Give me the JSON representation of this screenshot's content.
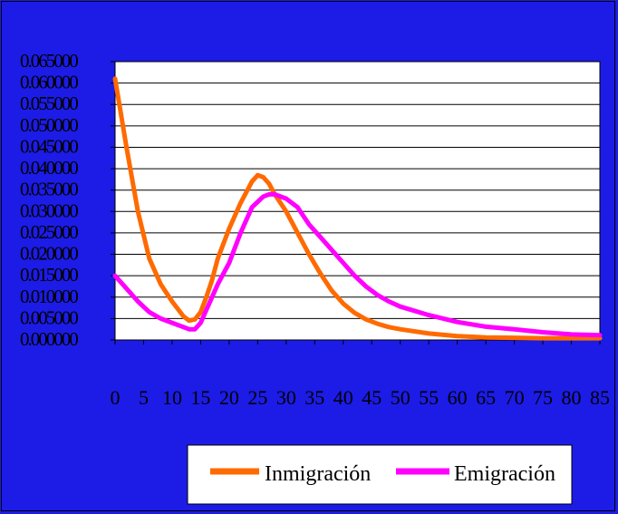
{
  "chart_data": {
    "type": "line",
    "title": "",
    "xlabel": "",
    "ylabel": "",
    "xlim": [
      0,
      85
    ],
    "ylim": [
      0,
      0.065
    ],
    "x_ticks": [
      "0",
      "5",
      "10",
      "15",
      "20",
      "25",
      "30",
      "35",
      "40",
      "45",
      "50",
      "55",
      "60",
      "65",
      "70",
      "75",
      "80",
      "85"
    ],
    "y_ticks": [
      "0.000000",
      "0.005000",
      "0.010000",
      "0.015000",
      "0.020000",
      "0.025000",
      "0.030000",
      "0.035000",
      "0.040000",
      "0.045000",
      "0.050000",
      "0.055000",
      "0.060000",
      "0.065000"
    ],
    "grid": "horizontal",
    "legend_position": "bottom-center",
    "colors": {
      "background": "#1c1ce6",
      "plot": "#ffffff",
      "inmigracion": "#ff6a00",
      "emigracion": "#ff00ff"
    },
    "series": [
      {
        "name": "Inmigración",
        "x": [
          0,
          2,
          4,
          6,
          8,
          10,
          12,
          13,
          14,
          15,
          16,
          17,
          18,
          20,
          22,
          24,
          25,
          26,
          27,
          28,
          30,
          32,
          34,
          36,
          38,
          40,
          42,
          44,
          46,
          48,
          50,
          55,
          60,
          65,
          70,
          75,
          80,
          85
        ],
        "y": [
          0.061,
          0.045,
          0.03,
          0.019,
          0.013,
          0.009,
          0.0055,
          0.0045,
          0.0048,
          0.0065,
          0.01,
          0.014,
          0.019,
          0.026,
          0.032,
          0.037,
          0.0385,
          0.038,
          0.0365,
          0.034,
          0.03,
          0.025,
          0.02,
          0.0155,
          0.0115,
          0.0085,
          0.0063,
          0.0048,
          0.0038,
          0.003,
          0.0025,
          0.0015,
          0.0009,
          0.0006,
          0.0005,
          0.0004,
          0.0004,
          0.0004
        ]
      },
      {
        "name": "Emigración",
        "x": [
          0,
          2,
          4,
          6,
          8,
          10,
          12,
          13,
          14,
          15,
          16,
          17,
          18,
          20,
          22,
          24,
          26,
          27,
          28,
          30,
          32,
          34,
          36,
          38,
          40,
          42,
          44,
          46,
          48,
          50,
          55,
          60,
          65,
          70,
          75,
          80,
          85
        ],
        "y": [
          0.015,
          0.012,
          0.009,
          0.0065,
          0.005,
          0.004,
          0.003,
          0.0025,
          0.0025,
          0.004,
          0.007,
          0.01,
          0.013,
          0.018,
          0.025,
          0.031,
          0.0335,
          0.034,
          0.034,
          0.033,
          0.031,
          0.027,
          0.024,
          0.021,
          0.018,
          0.015,
          0.0125,
          0.0105,
          0.009,
          0.0078,
          0.0058,
          0.0042,
          0.0031,
          0.0025,
          0.0018,
          0.0013,
          0.0011
        ]
      }
    ]
  }
}
